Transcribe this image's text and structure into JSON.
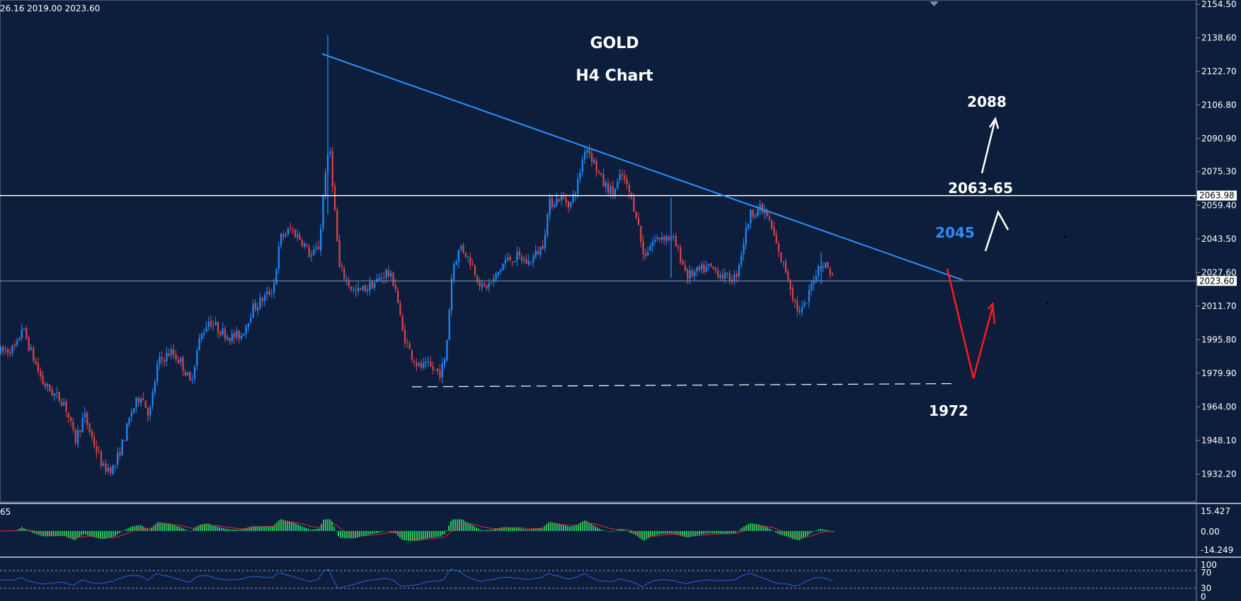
{
  "info_bar": "26.16 2019.00 2023.60",
  "colors": {
    "background": "#0c1e3b",
    "bull": "#1f8bff",
    "bear": "#e0434a",
    "trendline": "#2f8fff",
    "level_line": "#ffffff",
    "histogram": "#22c55e",
    "signal": "#e03030",
    "rsi": "#2d5fe0",
    "arrow_up": "#ffffff",
    "arrow_down": "#ff1a1a",
    "label_2045": "#2d8cff"
  },
  "icons": {
    "scroll_marker": "triangle-down-icon"
  },
  "chart_data": {
    "type": "candlestick",
    "title": "GOLD",
    "subtitle": "H4 Chart",
    "symbol": "GOLD",
    "timeframe": "H4",
    "ylim": [
      1925.0,
      2154.5
    ],
    "y_ticks": [
      "2154.50",
      "2138.60",
      "2122.70",
      "2106.80",
      "2090.90",
      "2075.30",
      "2059.40",
      "2043.50",
      "2027.60",
      "2011.70",
      "1995.80",
      "1979.90",
      "1964.00",
      "1948.10",
      "1932.20"
    ],
    "current_price": "2023.60",
    "resistance_level": "2063.98",
    "price_path": [
      [
        0,
        1990
      ],
      [
        22,
        1992
      ],
      [
        30,
        2002
      ],
      [
        45,
        1988
      ],
      [
        60,
        1975
      ],
      [
        75,
        1970
      ],
      [
        90,
        1966
      ],
      [
        105,
        1948
      ],
      [
        118,
        1960
      ],
      [
        128,
        1950
      ],
      [
        145,
        1935
      ],
      [
        160,
        1935
      ],
      [
        175,
        1950
      ],
      [
        185,
        1962
      ],
      [
        198,
        1970
      ],
      [
        210,
        1960
      ],
      [
        222,
        1985
      ],
      [
        240,
        1990
      ],
      [
        255,
        1985
      ],
      [
        268,
        1975
      ],
      [
        280,
        1995
      ],
      [
        293,
        2005
      ],
      [
        310,
        2000
      ],
      [
        325,
        1997
      ],
      [
        340,
        1998
      ],
      [
        355,
        2010
      ],
      [
        370,
        2015
      ],
      [
        385,
        2020
      ],
      [
        395,
        2044
      ],
      [
        410,
        2048
      ],
      [
        425,
        2043
      ],
      [
        438,
        2035
      ],
      [
        450,
        2040
      ],
      [
        458,
        2075
      ],
      [
        465,
        2086
      ],
      [
        471,
        2060
      ],
      [
        478,
        2030
      ],
      [
        490,
        2023
      ],
      [
        500,
        2018
      ],
      [
        515,
        2020
      ],
      [
        530,
        2023
      ],
      [
        545,
        2028
      ],
      [
        557,
        2022
      ],
      [
        567,
        2000
      ],
      [
        578,
        1990
      ],
      [
        590,
        1983
      ],
      [
        605,
        1983
      ],
      [
        620,
        1980
      ],
      [
        628,
        1986
      ],
      [
        638,
        2030
      ],
      [
        650,
        2040
      ],
      [
        665,
        2032
      ],
      [
        680,
        2020
      ],
      [
        695,
        2023
      ],
      [
        712,
        2033
      ],
      [
        730,
        2035
      ],
      [
        745,
        2032
      ],
      [
        765,
        2040
      ],
      [
        775,
        2060
      ],
      [
        790,
        2063
      ],
      [
        805,
        2060
      ],
      [
        815,
        2070
      ],
      [
        826,
        2088
      ],
      [
        838,
        2080
      ],
      [
        850,
        2070
      ],
      [
        865,
        2065
      ],
      [
        877,
        2074
      ],
      [
        888,
        2065
      ],
      [
        898,
        2055
      ],
      [
        908,
        2035
      ],
      [
        920,
        2042
      ],
      [
        935,
        2045
      ],
      [
        950,
        2043
      ],
      [
        960,
        2035
      ],
      [
        970,
        2026
      ],
      [
        985,
        2028
      ],
      [
        1000,
        2030
      ],
      [
        1012,
        2028
      ],
      [
        1025,
        2025
      ],
      [
        1038,
        2025
      ],
      [
        1048,
        2040
      ],
      [
        1058,
        2055
      ],
      [
        1070,
        2058
      ],
      [
        1082,
        2055
      ],
      [
        1092,
        2045
      ],
      [
        1100,
        2035
      ],
      [
        1110,
        2028
      ],
      [
        1120,
        2015
      ],
      [
        1128,
        2008
      ],
      [
        1138,
        2013
      ],
      [
        1148,
        2025
      ],
      [
        1158,
        2032
      ],
      [
        1168,
        2030
      ],
      [
        1178,
        2024
      ]
    ],
    "wicks": [
      [
        463,
        2140,
        2055
      ],
      [
        948,
        2063,
        2025
      ],
      [
        1160,
        2037,
        2022
      ]
    ],
    "trendline": {
      "from": [
        455,
        2131
      ],
      "to": [
        1360,
        2024
      ]
    },
    "support_level": {
      "value": 1972,
      "from_x": 582,
      "to_x": 1348
    },
    "annotations": {
      "target_up": "2088",
      "resistance_zone": "2063-65",
      "trendline_level": "2045",
      "support": "1972"
    },
    "macd": {
      "label": "65",
      "y_ticks": [
        "15.427",
        "0.00",
        "-14.249"
      ]
    },
    "rsi": {
      "y_ticks": [
        "100",
        "70",
        "30",
        "0"
      ]
    }
  }
}
